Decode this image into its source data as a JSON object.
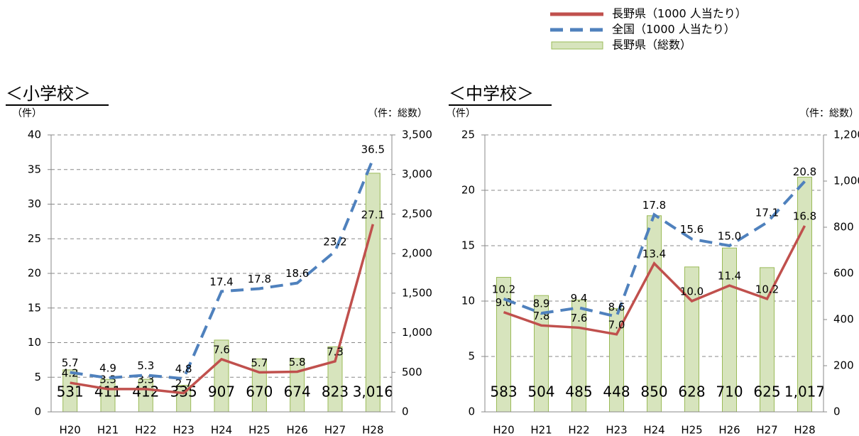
{
  "chart_data": [
    {
      "type": "combo",
      "title": "＜小学校＞",
      "y_label": "（件）",
      "y2_label": "（件：総数）",
      "categories": [
        "H20",
        "H21",
        "H22",
        "H23",
        "H24",
        "H25",
        "H26",
        "H27",
        "H28"
      ],
      "series": [
        {
          "name": "長野県（1000 人当たり）",
          "kind": "line",
          "color": "#c0504d",
          "values": [
            4.2,
            3.3,
            3.3,
            2.7,
            7.6,
            5.7,
            5.8,
            7.3,
            27.1
          ]
        },
        {
          "name": "全国（1000 人当たり）",
          "kind": "line",
          "dash": true,
          "color": "#4f81bd",
          "values": [
            5.7,
            4.9,
            5.3,
            4.8,
            17.4,
            17.8,
            18.6,
            23.2,
            36.5
          ]
        },
        {
          "name": "長野県（総数）",
          "kind": "bar",
          "axis": "y2",
          "color": "#d7e4bd",
          "edge": "#9bbb59",
          "values": [
            531,
            411,
            412,
            335,
            907,
            670,
            674,
            823,
            3016
          ],
          "value_labels": [
            "531",
            "411",
            "412",
            "335",
            "907",
            "670",
            "674",
            "823",
            "3,016"
          ]
        }
      ],
      "ylim": [
        0,
        40
      ],
      "yticks": [
        0,
        5,
        10,
        15,
        20,
        25,
        30,
        35,
        40
      ],
      "y2lim": [
        0,
        3500
      ],
      "y2ticks": [
        0,
        500,
        {
          "value": 1000,
          "label": "1,000"
        },
        {
          "value": 1500,
          "label": "1,500"
        },
        {
          "value": 2000,
          "label": "2,000"
        },
        {
          "value": 2500,
          "label": "2,500"
        },
        {
          "value": 3000,
          "label": "3,000"
        },
        {
          "value": 3500,
          "label": "3,500"
        }
      ],
      "grid": true
    },
    {
      "type": "combo",
      "title": "＜中学校＞",
      "y_label": "（件）",
      "y2_label": "（件：総数）",
      "categories": [
        "H20",
        "H21",
        "H22",
        "H23",
        "H24",
        "H25",
        "H26",
        "H27",
        "H28"
      ],
      "series": [
        {
          "kind": "line",
          "color": "#c0504d",
          "values": [
            9.0,
            7.8,
            7.6,
            7.0,
            13.4,
            10.0,
            11.4,
            10.2,
            16.8
          ],
          "value_labels": [
            "9.0",
            "7.8",
            "7.6",
            "7.0",
            "13.4",
            "10.0",
            "11.4",
            "10.2",
            "16.8"
          ]
        },
        {
          "kind": "line",
          "dash": true,
          "color": "#4f81bd",
          "values": [
            10.2,
            8.9,
            9.4,
            8.6,
            17.8,
            15.6,
            15.0,
            17.1,
            20.8
          ],
          "value_labels": [
            "10.2",
            "8.9",
            "9.4",
            "8.6",
            "17.8",
            "15.6",
            "15.0",
            "17.1",
            "20.8"
          ]
        },
        {
          "kind": "bar",
          "axis": "y2",
          "color": "#d7e4bd",
          "edge": "#9bbb59",
          "values": [
            583,
            504,
            485,
            448,
            850,
            628,
            710,
            625,
            1017
          ],
          "value_labels": [
            "583",
            "504",
            "485",
            "448",
            "850",
            "628",
            "710",
            "625",
            "1,017"
          ]
        }
      ],
      "ylim": [
        0,
        25
      ],
      "yticks": [
        0,
        5,
        10,
        15,
        20,
        25
      ],
      "y2lim": [
        0,
        1200
      ],
      "y2ticks": [
        0,
        200,
        400,
        600,
        800,
        {
          "value": 1000,
          "label": "1,000"
        },
        {
          "value": 1200,
          "label": "1,200"
        }
      ],
      "grid": true
    }
  ]
}
